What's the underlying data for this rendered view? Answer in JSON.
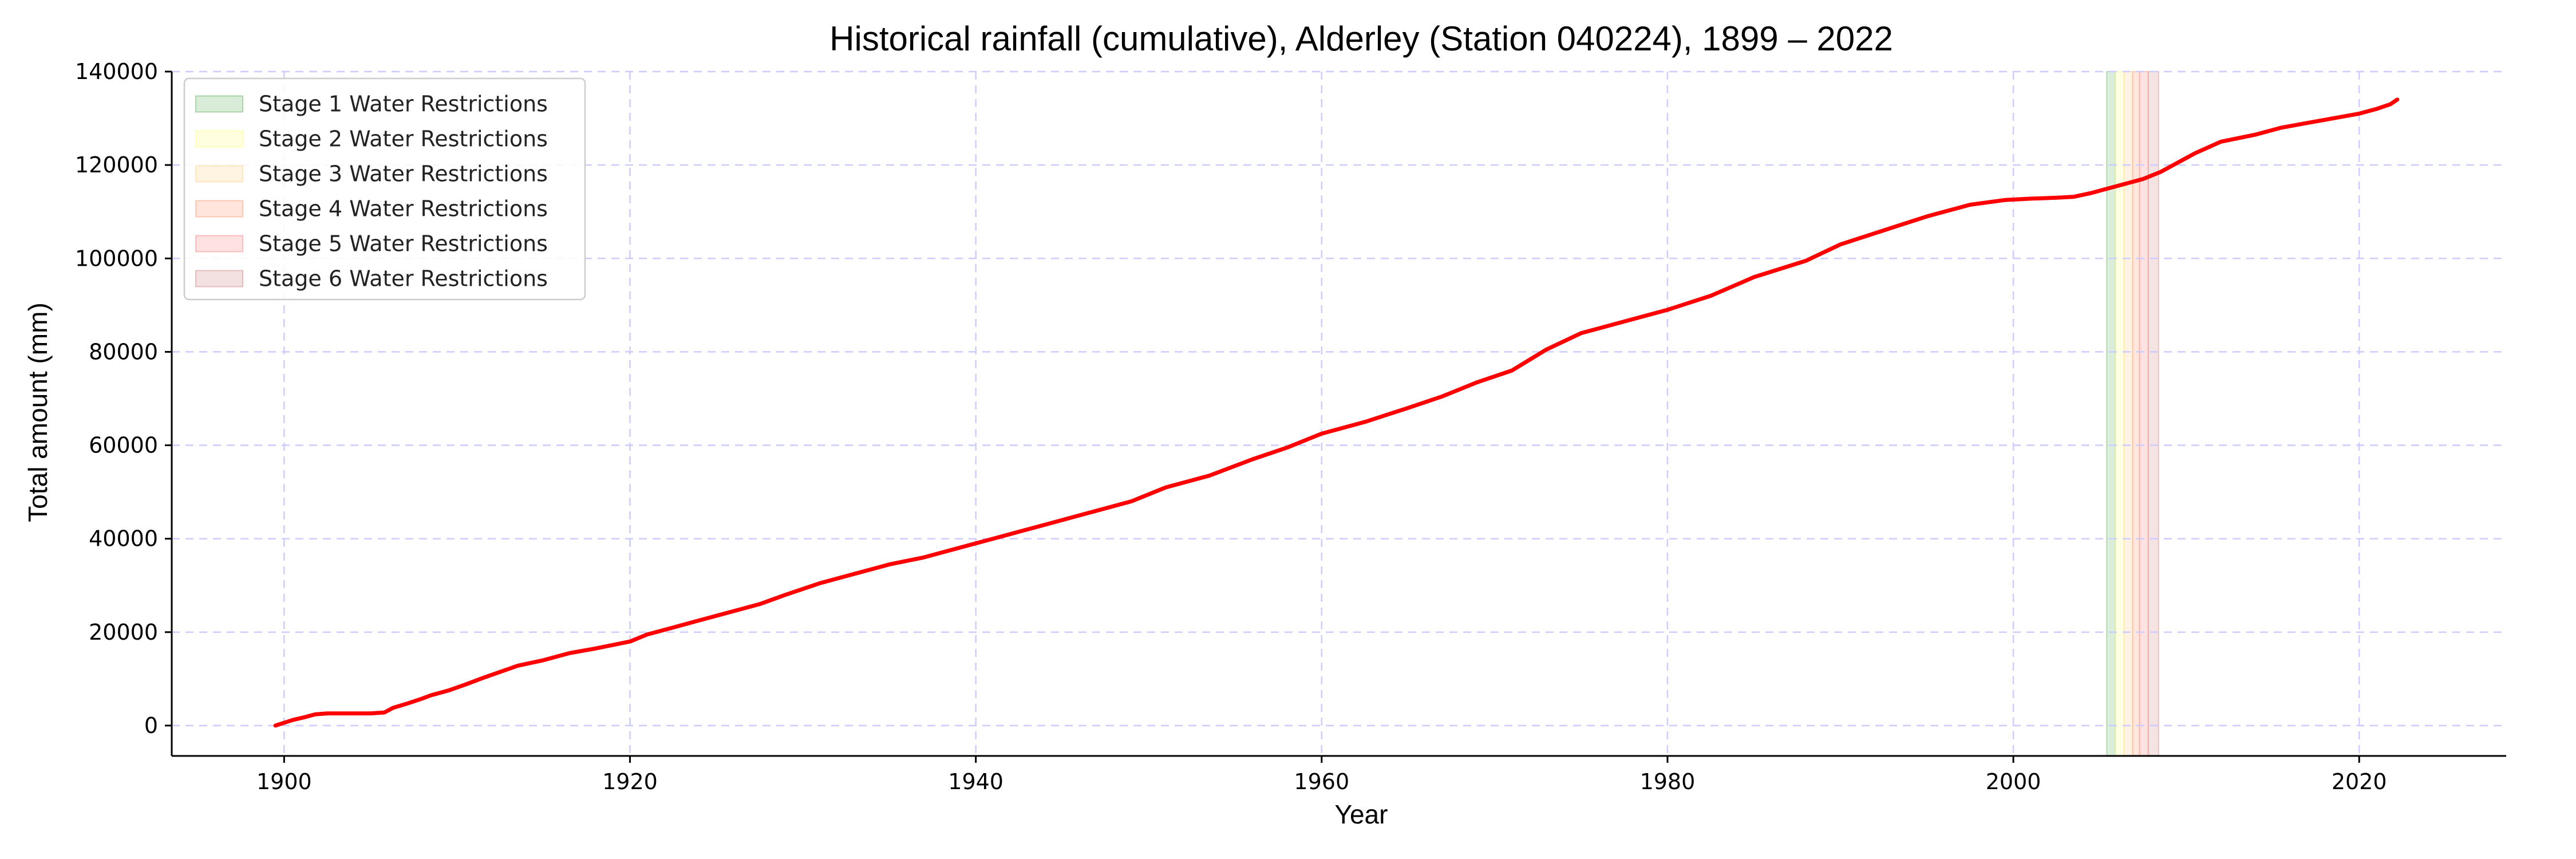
{
  "chart_data": {
    "type": "line",
    "title": "Historical rainfall (cumulative), Alderley (Station 040224), 1899 – 2022",
    "xlabel": "Year",
    "ylabel": "Total amount (mm)",
    "xlim": [
      1893.5,
      2028.5
    ],
    "ylim": [
      -6500,
      140000
    ],
    "x_ticks": [
      1900,
      1920,
      1940,
      1960,
      1980,
      2000,
      2020
    ],
    "y_ticks": [
      0,
      20000,
      40000,
      60000,
      80000,
      100000,
      120000,
      140000
    ],
    "grid": true,
    "legend_position": "top-left",
    "series": [
      {
        "color": "#ff0000",
        "x": [
          1899.5,
          1900.5,
          1901.2,
          1901.8,
          1902.5,
          1903,
          1904,
          1905,
          1905.8,
          1906.3,
          1907.2,
          1908,
          1908.5,
          1909.5,
          1910.5,
          1911.5,
          1912.5,
          1913.5,
          1915,
          1916.5,
          1918,
          1920,
          1921,
          1922.5,
          1924,
          1926,
          1927.5,
          1929,
          1931,
          1933,
          1935,
          1937,
          1939.5,
          1941.5,
          1944,
          1946.5,
          1949,
          1951,
          1953.5,
          1956,
          1958,
          1960,
          1962.5,
          1965,
          1967,
          1969,
          1971,
          1973,
          1975,
          1977.5,
          1980,
          1982.5,
          1985,
          1988,
          1990,
          1992.5,
          1995,
          1997.5,
          1999.5,
          2001,
          2002.5,
          2003.5,
          2004.5,
          2005.5,
          2006.5,
          2007.5,
          2008.5,
          2009.5,
          2010.5,
          2012,
          2014,
          2015.5,
          2017,
          2018.5,
          2020,
          2021,
          2021.8,
          2022.2
        ],
        "y": [
          0,
          1200,
          1800,
          2400,
          2600,
          2600,
          2600,
          2600,
          2800,
          3800,
          4800,
          5800,
          6500,
          7500,
          8800,
          10200,
          11500,
          12800,
          14000,
          15500,
          16500,
          18000,
          19500,
          21000,
          22500,
          24500,
          26000,
          28000,
          30500,
          32500,
          34500,
          36000,
          38500,
          40500,
          43000,
          45500,
          48000,
          51000,
          53500,
          57000,
          59500,
          62500,
          65000,
          68000,
          70500,
          73500,
          76000,
          80500,
          84000,
          86500,
          89000,
          92000,
          96000,
          99500,
          103000,
          106000,
          109000,
          111500,
          112500,
          112800,
          113000,
          113200,
          114000,
          115000,
          116000,
          117000,
          118500,
          120500,
          122500,
          125000,
          126500,
          128000,
          129000,
          130000,
          131000,
          132000,
          133000,
          134000
        ]
      }
    ],
    "shaded_regions": [
      {
        "label": "Stage 1 Water Restrictions",
        "x0": 2005.4,
        "x1": 2005.9,
        "color": "#7fbf7f"
      },
      {
        "label": "Stage 2 Water Restrictions",
        "x0": 2005.9,
        "x1": 2006.4,
        "color": "#ffff99"
      },
      {
        "label": "Stage 3 Water Restrictions",
        "x0": 2006.4,
        "x1": 2006.9,
        "color": "#ffd99a"
      },
      {
        "label": "Stage 4 Water Restrictions",
        "x0": 2006.9,
        "x1": 2007.3,
        "color": "#ffaa88"
      },
      {
        "label": "Stage 5 Water Restrictions",
        "x0": 2007.3,
        "x1": 2007.8,
        "color": "#ff9a9a"
      },
      {
        "label": "Stage 6 Water Restrictions",
        "x0": 2007.8,
        "x1": 2008.4,
        "color": "#d89a9a"
      }
    ],
    "colors": {
      "grid": "#ccccff",
      "axis": "#000000",
      "legend_border": "#cccccc"
    }
  }
}
